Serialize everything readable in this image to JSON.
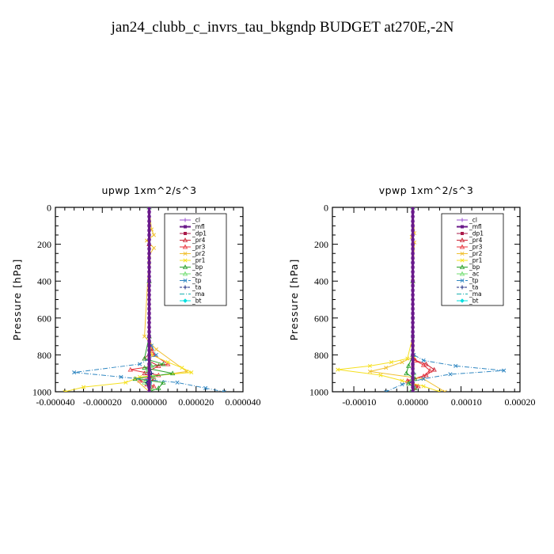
{
  "figure": {
    "title": "jan24_clubb_c_invrs_tau_bkgndp  BUDGET at270E,-2N"
  },
  "colors": {
    "cl": "#9a4fd0",
    "mfl": "#6a1a8a",
    "dp1": "#aa1a4a",
    "pr4": "#cc2233",
    "pr3": "#e8323a",
    "pr2": "#f0c030",
    "pr1": "#f5e020",
    "bp": "#28a028",
    "ac": "#70dd70",
    "tp": "#2e86c1",
    "ta": "#1a2a80",
    "ma": "#1ab0b0",
    "bt": "#00e0e0"
  },
  "chart_data": [
    {
      "type": "line",
      "title": "upwp   1xm^2/s^3",
      "ylabel": "Pressure [hPa]",
      "xlim": [
        -4e-05,
        4e-05
      ],
      "ylim": [
        1000,
        0
      ],
      "xticks": [
        -4e-05,
        -2e-05,
        0,
        2e-05,
        4e-05
      ],
      "xtick_labels": [
        "-0.000040",
        "-0.000020",
        "0.000000",
        "0.000020",
        "0.000040"
      ],
      "yticks": [
        0,
        200,
        400,
        600,
        800,
        1000
      ],
      "ytick_labels": [
        "0",
        "200",
        "400",
        "600",
        "800",
        "1000"
      ],
      "legend_position": "top-right",
      "legend": [
        "_cl",
        "_mfl",
        "_dp1",
        "_pr4",
        "_pr3",
        "_pr2",
        "_pr1",
        "_bp",
        "_ac",
        "_tp",
        "_ta",
        "_ma",
        "_bt"
      ],
      "series": [
        {
          "name": "_cl",
          "key": "cl",
          "x": [
            0,
            0,
            0,
            0,
            0,
            0,
            0,
            0,
            0,
            0,
            0,
            0
          ],
          "y": [
            0,
            100,
            200,
            300,
            400,
            500,
            600,
            700,
            800,
            900,
            950,
            1000
          ]
        },
        {
          "name": "_mfl",
          "key": "mfl",
          "x": [
            0,
            0,
            0,
            0,
            0,
            0,
            0,
            0,
            0,
            0,
            0,
            0
          ],
          "y": [
            0,
            100,
            200,
            300,
            400,
            500,
            600,
            700,
            800,
            900,
            950,
            1000
          ]
        },
        {
          "name": "_dp1",
          "key": "dp1",
          "x": [
            0,
            0,
            0,
            0,
            0,
            0,
            0,
            0,
            0,
            0,
            0
          ],
          "y": [
            0,
            200,
            400,
            600,
            750,
            820,
            860,
            900,
            930,
            960,
            1000
          ]
        },
        {
          "name": "_pr4",
          "key": "pr4",
          "x": [
            0,
            0,
            0,
            0,
            1e-06,
            -2e-06,
            4e-06,
            -2e-06,
            2e-06,
            -1e-06,
            0
          ],
          "y": [
            0,
            200,
            400,
            700,
            780,
            820,
            860,
            900,
            930,
            960,
            1000
          ]
        },
        {
          "name": "_pr3",
          "key": "pr3",
          "x": [
            0,
            0,
            0,
            0,
            2e-06,
            8e-06,
            -8e-06,
            4e-06,
            -4e-06,
            2e-06,
            0
          ],
          "y": [
            0,
            200,
            400,
            700,
            800,
            850,
            880,
            910,
            940,
            970,
            1000
          ]
        },
        {
          "name": "_pr2",
          "key": "pr2",
          "x": [
            0,
            1e-06,
            2e-06,
            -1e-06,
            2e-06,
            0,
            -2e-06,
            3e-06,
            1.6e-05,
            -6e-06,
            0
          ],
          "y": [
            0,
            120,
            150,
            180,
            220,
            260,
            700,
            770,
            890,
            930,
            1000
          ]
        },
        {
          "name": "_pr1",
          "key": "pr1",
          "x": [
            0,
            0,
            0,
            1e-06,
            8e-06,
            1.4e-05,
            1.8e-05,
            -4e-06,
            -1e-05,
            -2.8e-05,
            -3.6e-05
          ],
          "y": [
            0,
            300,
            700,
            800,
            840,
            870,
            895,
            920,
            950,
            975,
            1000
          ]
        },
        {
          "name": "_bp",
          "key": "bp",
          "x": [
            0,
            0,
            0,
            -2e-06,
            6e-06,
            -2e-06,
            1e-05,
            -6e-06,
            6e-06,
            4e-06,
            0
          ],
          "y": [
            0,
            400,
            700,
            820,
            850,
            870,
            900,
            930,
            950,
            980,
            1000
          ]
        },
        {
          "name": "_ac",
          "key": "ac",
          "x": [
            0,
            0,
            0,
            1e-06,
            -1e-06,
            2e-06,
            -2e-06,
            1e-06,
            0
          ],
          "y": [
            0,
            400,
            800,
            860,
            890,
            920,
            950,
            980,
            1000
          ]
        },
        {
          "name": "_tp",
          "key": "tp",
          "x": [
            0,
            0,
            0,
            1e-06,
            3e-06,
            -4e-06,
            -3.2e-05,
            -1.2e-05,
            1.2e-05,
            2.4e-05,
            3.2e-05
          ],
          "y": [
            0,
            400,
            700,
            750,
            800,
            850,
            895,
            920,
            950,
            980,
            1000
          ]
        },
        {
          "name": "_ta",
          "key": "ta",
          "x": [
            0,
            0,
            0,
            0,
            1e-06,
            -1e-06,
            0
          ],
          "y": [
            0,
            400,
            700,
            850,
            900,
            950,
            1000
          ]
        },
        {
          "name": "_ma",
          "key": "ma",
          "x": [
            0,
            0,
            0,
            0,
            1e-06,
            0
          ],
          "y": [
            0,
            400,
            800,
            900,
            950,
            1000
          ]
        },
        {
          "name": "_bt",
          "key": "bt",
          "x": [
            0,
            0,
            0,
            0,
            0
          ],
          "y": [
            0,
            300,
            600,
            900,
            1000
          ]
        }
      ]
    },
    {
      "type": "line",
      "title": "vpwp   1xm^2/s^3",
      "ylabel": "Pressure [hPa]",
      "xlim": [
        -0.00015,
        0.0002
      ],
      "ylim": [
        1000,
        0
      ],
      "xticks": [
        -0.0001,
        0,
        0.0001,
        0.0002
      ],
      "xtick_labels": [
        "-0.00010",
        "0.00000",
        "0.00010",
        "0.00020"
      ],
      "yticks": [
        0,
        200,
        400,
        600,
        800,
        1000
      ],
      "ytick_labels": [
        "0",
        "200",
        "400",
        "600",
        "800",
        "1000"
      ],
      "legend_position": "top-right",
      "legend": [
        "_cl",
        "_mfl",
        "_dp1",
        "_pr4",
        "_pr3",
        "_pr2",
        "_pr1",
        "_bp",
        "_ac",
        "_tp",
        "_ta",
        "_ma",
        "_bt"
      ],
      "series": [
        {
          "name": "_cl",
          "key": "cl",
          "x": [
            0,
            0,
            0,
            0,
            0,
            0,
            0,
            0,
            0,
            0,
            0,
            0
          ],
          "y": [
            0,
            100,
            200,
            300,
            400,
            500,
            600,
            700,
            800,
            900,
            950,
            1000
          ]
        },
        {
          "name": "_mfl",
          "key": "mfl",
          "x": [
            0,
            0,
            0,
            0,
            0,
            0,
            0,
            0,
            0,
            0,
            0,
            0
          ],
          "y": [
            0,
            100,
            200,
            300,
            400,
            500,
            600,
            700,
            800,
            900,
            950,
            1000
          ]
        },
        {
          "name": "_dp1",
          "key": "dp1",
          "x": [
            0,
            0,
            0,
            0,
            0,
            0,
            0,
            0,
            0,
            0,
            0
          ],
          "y": [
            0,
            200,
            400,
            600,
            750,
            820,
            860,
            900,
            930,
            960,
            1000
          ]
        },
        {
          "name": "_pr4",
          "key": "pr4",
          "x": [
            0,
            0,
            0,
            5e-06,
            2.5e-05,
            4e-05,
            2.5e-05,
            -1e-05,
            1e-05,
            0
          ],
          "y": [
            0,
            400,
            800,
            830,
            850,
            880,
            910,
            940,
            970,
            1000
          ]
        },
        {
          "name": "_pr3",
          "key": "pr3",
          "x": [
            0,
            0,
            0,
            4e-06,
            2e-05,
            3.2e-05,
            2e-05,
            -8e-06,
            6e-06,
            0
          ],
          "y": [
            0,
            400,
            800,
            830,
            855,
            885,
            915,
            945,
            970,
            1000
          ]
        },
        {
          "name": "_pr2",
          "key": "pr2",
          "x": [
            0,
            3e-06,
            -2e-06,
            3e-06,
            0,
            2e-06,
            -2e-05,
            -5e-05,
            -8e-05,
            2e-05,
            6e-05
          ],
          "y": [
            0,
            140,
            160,
            190,
            400,
            810,
            840,
            870,
            890,
            930,
            1000
          ]
        },
        {
          "name": "_pr1",
          "key": "pr1",
          "x": [
            0,
            0,
            -1e-05,
            -4e-05,
            -8e-05,
            -0.00014,
            -6e-05,
            -2e-05,
            2e-05,
            5e-05
          ],
          "y": [
            0,
            700,
            820,
            840,
            860,
            880,
            910,
            940,
            970,
            1000
          ]
        },
        {
          "name": "_bp",
          "key": "bp",
          "x": [
            0,
            0,
            0,
            -8e-06,
            -1.2e-05,
            4e-06,
            -8e-06,
            4e-06,
            -4e-06
          ],
          "y": [
            0,
            400,
            800,
            860,
            900,
            930,
            955,
            980,
            1000
          ]
        },
        {
          "name": "_ac",
          "key": "ac",
          "x": [
            0,
            0,
            0,
            2e-06,
            -3e-06,
            2e-06,
            0
          ],
          "y": [
            0,
            400,
            800,
            900,
            940,
            970,
            1000
          ]
        },
        {
          "name": "_tp",
          "key": "tp",
          "x": [
            0,
            0,
            2e-06,
            2e-05,
            8e-05,
            0.00017,
            7e-05,
            2e-05,
            -2e-05,
            -5e-05
          ],
          "y": [
            0,
            700,
            800,
            830,
            860,
            885,
            905,
            930,
            960,
            1000
          ]
        },
        {
          "name": "_ta",
          "key": "ta",
          "x": [
            0,
            0,
            0,
            2e-06,
            -2e-06,
            0
          ],
          "y": [
            0,
            400,
            800,
            900,
            950,
            1000
          ]
        },
        {
          "name": "_ma",
          "key": "ma",
          "x": [
            0,
            0,
            0,
            2e-06,
            0
          ],
          "y": [
            0,
            400,
            800,
            920,
            1000
          ]
        },
        {
          "name": "_bt",
          "key": "bt",
          "x": [
            0,
            0,
            0,
            0,
            0
          ],
          "y": [
            0,
            300,
            600,
            900,
            1000
          ]
        }
      ]
    }
  ]
}
